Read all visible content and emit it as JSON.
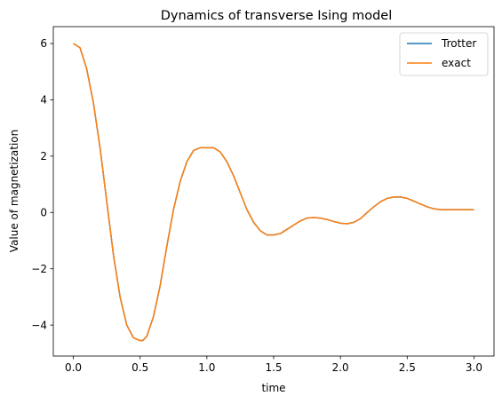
{
  "chart_data": {
    "type": "line",
    "title": "Dynamics of transverse Ising model",
    "xlabel": "time",
    "ylabel": "Value of magnetization",
    "xlim": [
      -0.15,
      3.15
    ],
    "ylim": [
      -5.1,
      6.6
    ],
    "xticks": [
      0.0,
      0.5,
      1.0,
      1.5,
      2.0,
      2.5,
      3.0
    ],
    "xtick_labels": [
      "0.0",
      "0.5",
      "1.0",
      "1.5",
      "2.0",
      "2.5",
      "3.0"
    ],
    "yticks": [
      -4,
      -2,
      0,
      2,
      4,
      6
    ],
    "ytick_labels": [
      "−4",
      "−2",
      "0",
      "2",
      "4",
      "6"
    ],
    "grid": false,
    "legend_position": "top-right",
    "series": [
      {
        "name": "Trotter",
        "color": "#1f77b4",
        "x": [
          0.0,
          0.05,
          0.1,
          0.15,
          0.2,
          0.25,
          0.3,
          0.35,
          0.4,
          0.45,
          0.5,
          0.52,
          0.55,
          0.6,
          0.65,
          0.7,
          0.75,
          0.8,
          0.85,
          0.9,
          0.95,
          1.0,
          1.05,
          1.1,
          1.15,
          1.2,
          1.25,
          1.3,
          1.35,
          1.4,
          1.45,
          1.5,
          1.55,
          1.6,
          1.65,
          1.7,
          1.75,
          1.8,
          1.85,
          1.9,
          1.95,
          2.0,
          2.05,
          2.1,
          2.15,
          2.2,
          2.25,
          2.3,
          2.35,
          2.4,
          2.45,
          2.5,
          2.55,
          2.6,
          2.65,
          2.7,
          2.75,
          2.8,
          2.85,
          2.9,
          2.95,
          3.0
        ],
        "y": [
          6.0,
          5.85,
          5.1,
          3.9,
          2.3,
          0.4,
          -1.5,
          -3.0,
          -4.0,
          -4.45,
          -4.55,
          -4.55,
          -4.4,
          -3.7,
          -2.6,
          -1.2,
          0.1,
          1.1,
          1.8,
          2.2,
          2.3,
          2.3,
          2.3,
          2.15,
          1.8,
          1.3,
          0.7,
          0.1,
          -0.35,
          -0.65,
          -0.8,
          -0.8,
          -0.75,
          -0.6,
          -0.45,
          -0.3,
          -0.2,
          -0.18,
          -0.2,
          -0.25,
          -0.32,
          -0.38,
          -0.4,
          -0.35,
          -0.22,
          0.0,
          0.2,
          0.38,
          0.5,
          0.55,
          0.55,
          0.5,
          0.4,
          0.3,
          0.2,
          0.13,
          0.1,
          0.1,
          0.1,
          0.1,
          0.1,
          0.1
        ]
      },
      {
        "name": "exact",
        "color": "#ff7f0e",
        "x": [
          0.0,
          0.05,
          0.1,
          0.15,
          0.2,
          0.25,
          0.3,
          0.35,
          0.4,
          0.45,
          0.5,
          0.52,
          0.55,
          0.6,
          0.65,
          0.7,
          0.75,
          0.8,
          0.85,
          0.9,
          0.95,
          1.0,
          1.05,
          1.1,
          1.15,
          1.2,
          1.25,
          1.3,
          1.35,
          1.4,
          1.45,
          1.5,
          1.55,
          1.6,
          1.65,
          1.7,
          1.75,
          1.8,
          1.85,
          1.9,
          1.95,
          2.0,
          2.05,
          2.1,
          2.15,
          2.2,
          2.25,
          2.3,
          2.35,
          2.4,
          2.45,
          2.5,
          2.55,
          2.6,
          2.65,
          2.7,
          2.75,
          2.8,
          2.85,
          2.9,
          2.95,
          3.0
        ],
        "y": [
          6.0,
          5.85,
          5.1,
          3.9,
          2.3,
          0.4,
          -1.5,
          -3.0,
          -4.0,
          -4.45,
          -4.55,
          -4.55,
          -4.4,
          -3.7,
          -2.6,
          -1.2,
          0.1,
          1.1,
          1.8,
          2.2,
          2.3,
          2.3,
          2.3,
          2.15,
          1.8,
          1.3,
          0.7,
          0.1,
          -0.35,
          -0.65,
          -0.8,
          -0.8,
          -0.75,
          -0.6,
          -0.45,
          -0.3,
          -0.2,
          -0.18,
          -0.2,
          -0.25,
          -0.32,
          -0.38,
          -0.4,
          -0.35,
          -0.22,
          0.0,
          0.2,
          0.38,
          0.5,
          0.55,
          0.55,
          0.5,
          0.4,
          0.3,
          0.2,
          0.13,
          0.1,
          0.1,
          0.1,
          0.1,
          0.1,
          0.1
        ]
      }
    ]
  }
}
